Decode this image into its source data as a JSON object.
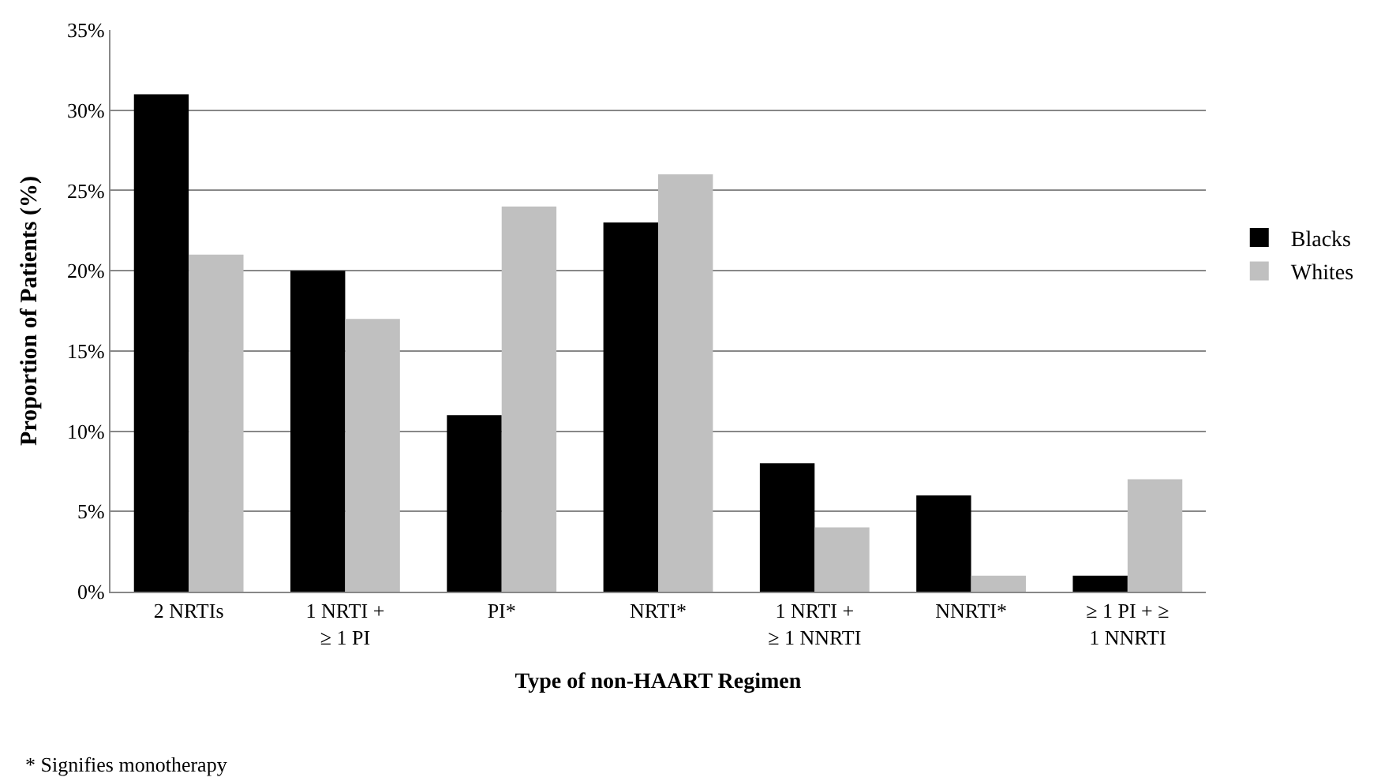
{
  "chart_data": {
    "type": "bar",
    "xlabel": "Type of non-HAART Regimen",
    "ylabel": "Proportion of Patients (%)",
    "categories": [
      "2 NRTIs",
      "1 NRTI +\n≥ 1 PI",
      "PI*",
      "NRTI*",
      "1 NRTI +\n≥ 1 NNRTI",
      "NNRTI*",
      "≥ 1 PI + ≥\n1 NNRTI"
    ],
    "series": [
      {
        "name": "Blacks",
        "color": "#000000",
        "values": [
          31,
          20,
          11,
          23,
          8,
          6,
          1
        ]
      },
      {
        "name": "Whites",
        "color": "#c0c0c0",
        "values": [
          21,
          17,
          24,
          26,
          4,
          1,
          7
        ]
      }
    ],
    "ylim": [
      0,
      35
    ],
    "yticks": [
      {
        "value": 0,
        "label": "0%"
      },
      {
        "value": 5,
        "label": "5%"
      },
      {
        "value": 10,
        "label": "10%"
      },
      {
        "value": 15,
        "label": "15%"
      },
      {
        "value": 20,
        "label": "20%"
      },
      {
        "value": 25,
        "label": "25%"
      },
      {
        "value": 30,
        "label": "30%"
      },
      {
        "value": 35,
        "label": "35%"
      }
    ],
    "grid": "y",
    "legend": "right",
    "annotations": [
      "* Signifies monotherapy"
    ]
  }
}
